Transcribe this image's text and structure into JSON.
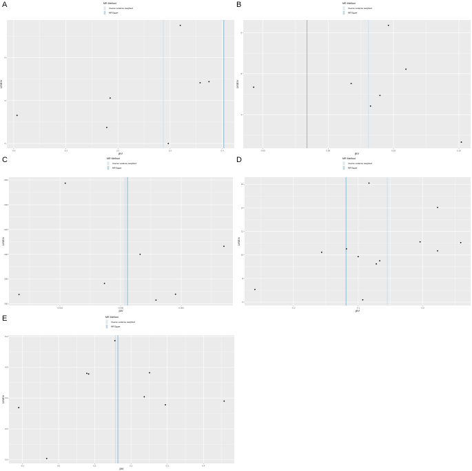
{
  "legend": {
    "title": "MR Method",
    "entries": [
      "Inverse variance weighted",
      "MR Egger"
    ]
  },
  "colors": {
    "panel_background": "#EBEBEB",
    "grid": "#FFFFFF",
    "ivw_line": "#C6DBEF",
    "egger_line": "#6BAED6",
    "points": "#000000"
  },
  "chart_data": [
    {
      "panel": "A",
      "type": "scatter",
      "xlabel": "βIV",
      "ylabel": "1/SEIV",
      "xlim": [
        -0.426,
        0.446
      ],
      "ylim": [
        1.78,
        7.75
      ],
      "xticks": [
        -0.4,
        -0.2,
        0.0,
        0.2,
        0.4
      ],
      "xtick_labels": [
        "-0.4",
        "-0.2",
        "0.0",
        "0.2",
        "0.4"
      ],
      "yticks": [
        2,
        4,
        6
      ],
      "ytick_labels": [
        "2",
        "4",
        "6"
      ],
      "points": [
        [
          -0.387,
          3.31
        ],
        [
          -0.043,
          2.75
        ],
        [
          -0.03,
          4.12
        ],
        [
          0.193,
          2.0
        ],
        [
          0.239,
          7.5
        ],
        [
          0.315,
          4.83
        ],
        [
          0.349,
          4.88
        ]
      ],
      "ivw": 0.174,
      "egger": 0.406,
      "grid": true,
      "legend_position": "top"
    },
    {
      "panel": "B",
      "type": "scatter",
      "xlabel": "βIV",
      "ylabel": "1/SEIV",
      "xlim": [
        -0.065,
        0.109
      ],
      "ylim": [
        3.18,
        6.31
      ],
      "xticks": [
        -0.05,
        0.0,
        0.05,
        0.1
      ],
      "xtick_labels": [
        "-0.05",
        "0.00",
        "0.05",
        "0.10"
      ],
      "yticks": [
        4,
        5,
        6
      ],
      "ytick_labels": [
        "4",
        "5",
        "6"
      ],
      "points": [
        [
          -0.057,
          4.67
        ],
        [
          0.0176,
          4.76
        ],
        [
          0.0324,
          4.21
        ],
        [
          0.0396,
          4.47
        ],
        [
          0.0461,
          6.18
        ],
        [
          0.0595,
          5.11
        ],
        [
          0.1019,
          3.33
        ]
      ],
      "ivw": 0.0308,
      "egger": -0.0162,
      "grid": true,
      "legend_position": "top"
    },
    {
      "panel": "C",
      "type": "scatter",
      "xlabel": "βIV",
      "ylabel": "1/SEIV",
      "xlim": [
        -0.0142,
        0.00426
      ],
      "ylim": [
        258.7,
        362.2
      ],
      "xticks": [
        -0.01,
        -0.005,
        0.0
      ],
      "xtick_labels": [
        "-0.010",
        "-0.005",
        "0.000"
      ],
      "yticks": [
        260,
        280,
        300,
        320,
        340,
        360
      ],
      "ytick_labels": [
        "260",
        "280",
        "300",
        "320",
        "340",
        "360"
      ],
      "points": [
        [
          -0.01337,
          267.6
        ],
        [
          -0.00956,
          357.4
        ],
        [
          -0.00633,
          276.5
        ],
        [
          -0.00339,
          300.0
        ],
        [
          -0.00208,
          263.1
        ],
        [
          -0.00047,
          267.8
        ],
        [
          0.00352,
          306.5
        ]
      ],
      "ivw": -0.00464,
      "egger": -0.00443,
      "grid": true,
      "legend_position": "top"
    },
    {
      "panel": "D",
      "type": "scatter",
      "xlabel": "βIV",
      "ylabel": "1/SEIV",
      "xlim": [
        -0.2755,
        0.0738
      ],
      "ylim": [
        5.71,
        16.6
      ],
      "xticks": [
        -0.2,
        -0.1,
        0.0
      ],
      "xtick_labels": [
        "-0.2",
        "-0.1",
        "0.0"
      ],
      "yticks": [
        6,
        8,
        10,
        12,
        14,
        16
      ],
      "ytick_labels": [
        "6",
        "8",
        "10",
        "12",
        "14",
        "16"
      ],
      "points": [
        [
          -0.2596,
          7.07
        ],
        [
          -0.1564,
          10.23
        ],
        [
          -0.1181,
          10.52
        ],
        [
          -0.1,
          9.86
        ],
        [
          -0.0929,
          6.19
        ],
        [
          -0.0833,
          16.1
        ],
        [
          -0.072,
          9.24
        ],
        [
          -0.0667,
          9.51
        ],
        [
          -0.0043,
          11.11
        ],
        [
          0.0227,
          14.04
        ],
        [
          0.0227,
          10.35
        ],
        [
          0.0585,
          11.05
        ]
      ],
      "ivw": -0.055,
      "egger": -0.1188,
      "grid": true,
      "legend_position": "top"
    },
    {
      "panel": "E",
      "type": "scatter",
      "xlabel": "βIV",
      "ylabel": "1/SEIV",
      "xlim": [
        -0.137,
        0.485
      ],
      "ylim": [
        2.94,
        5.02
      ],
      "xticks": [
        -0.1,
        0.0,
        0.1,
        0.2,
        0.3,
        0.4
      ],
      "xtick_labels": [
        "-0.1",
        "0.0",
        "0.1",
        "0.2",
        "0.3",
        "0.4"
      ],
      "yticks": [
        3.0,
        3.5,
        4.0,
        4.5,
        5.0
      ],
      "ytick_labels": [
        "3.0",
        "3.5",
        "4.0",
        "4.5",
        "5.0"
      ],
      "points": [
        [
          -0.1101,
          3.845
        ],
        [
          -0.0328,
          3.02
        ],
        [
          0.078,
          4.4
        ],
        [
          0.083,
          4.39
        ],
        [
          0.1554,
          4.93
        ],
        [
          0.2365,
          4.02
        ],
        [
          0.2511,
          4.41
        ],
        [
          0.2948,
          3.89
        ],
        [
          0.457,
          3.95
        ]
      ],
      "ivw": 0.157,
      "egger": 0.1636,
      "grid": true,
      "legend_position": "top"
    }
  ]
}
